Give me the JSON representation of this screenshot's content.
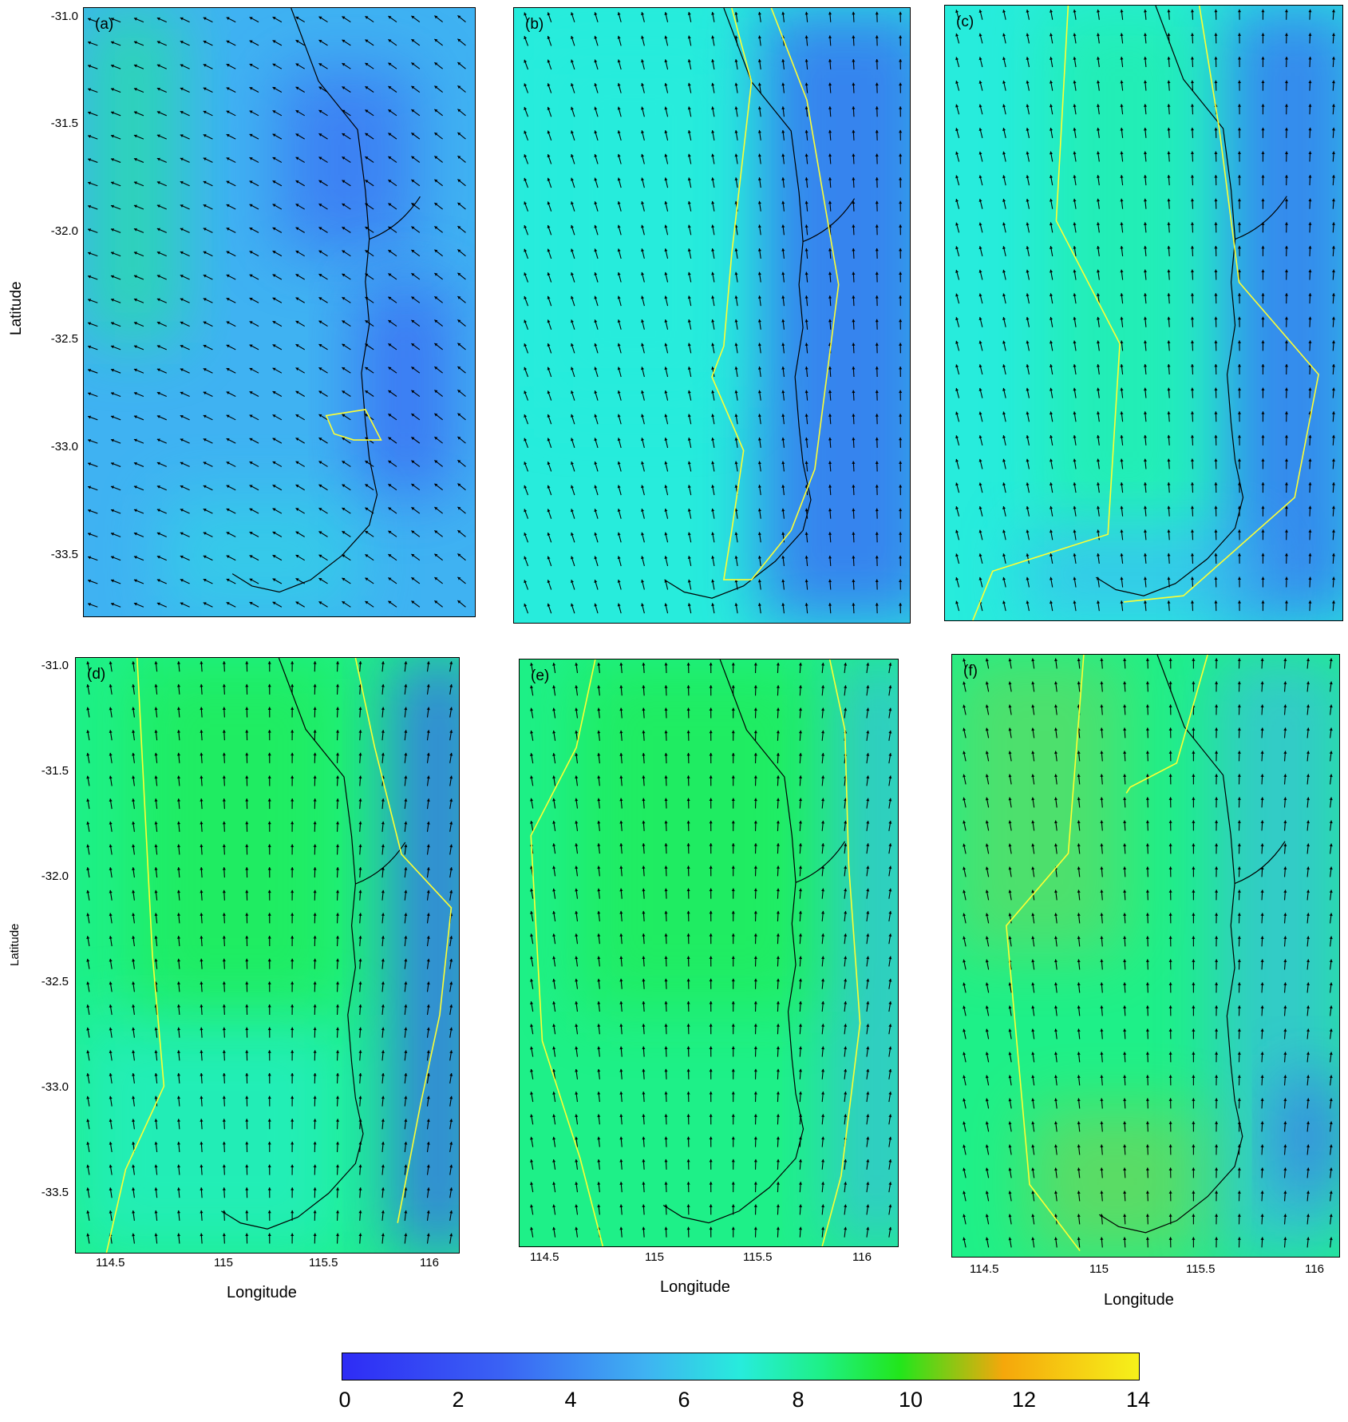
{
  "panels": [
    {
      "label": "(a)",
      "style": "a"
    },
    {
      "label": "(b)",
      "style": "b"
    },
    {
      "label": "(c)",
      "style": "c"
    },
    {
      "label": "(d)",
      "style": "d"
    },
    {
      "label": "(e)",
      "style": "e"
    },
    {
      "label": "(f)",
      "style": "f"
    }
  ],
  "y_ticks": [
    "-31.0",
    "-31.5",
    "-32.0",
    "-32.5",
    "-33.0",
    "-33.5"
  ],
  "x_ticks": [
    "114.5",
    "115",
    "115.5",
    "116"
  ],
  "y_title": "Latitude",
  "x_title": "Longitude",
  "colorbar": {
    "ticks": [
      "0",
      "2",
      "4",
      "6",
      "8",
      "10",
      "12",
      "14"
    ],
    "colors": [
      "#2e2cf5",
      "#3a62f4",
      "#3fb2f2",
      "#27ecdc",
      "#1ef088",
      "#22e61b",
      "#f5a70b",
      "#f6f11a"
    ]
  },
  "colors": {
    "contour": "#ffff33",
    "coastline": "#000000",
    "arrow": "#000000"
  }
}
